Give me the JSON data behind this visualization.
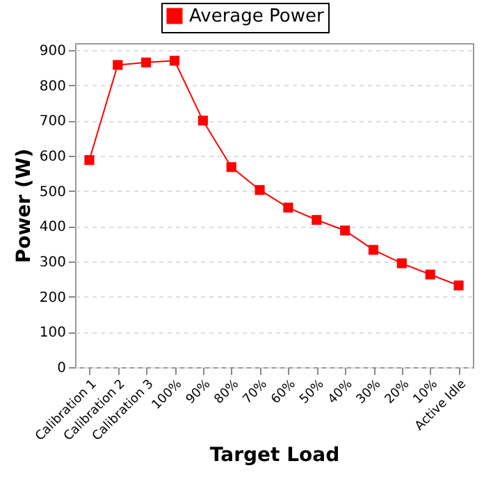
{
  "chart_data": {
    "type": "line",
    "xlabel": "Target Load",
    "ylabel": "Power (W)",
    "categories": [
      "Calibration 1",
      "Calibration 2",
      "Calibration 3",
      "100%",
      "90%",
      "80%",
      "70%",
      "60%",
      "50%",
      "40%",
      "30%",
      "20%",
      "10%",
      "Active Idle"
    ],
    "series": [
      {
        "name": "Average Power",
        "color": "#ff0000",
        "values": [
          588,
          858,
          865,
          870,
          700,
          568,
          503,
          453,
          418,
          388,
          333,
          295,
          263,
          232
        ]
      }
    ],
    "ylim": [
      0,
      920
    ],
    "yticks": [
      0,
      100,
      200,
      300,
      400,
      500,
      600,
      700,
      800,
      900
    ],
    "grid": "y",
    "legend": "top",
    "marker": "square",
    "line_style": "solid"
  }
}
